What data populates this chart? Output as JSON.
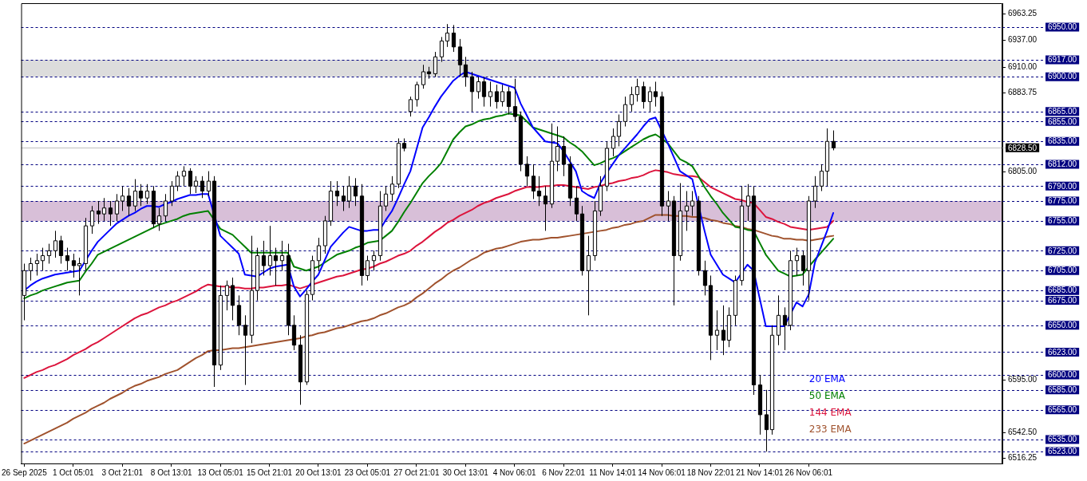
{
  "chart_data": {
    "type": "candlestick",
    "categories": [
      "26 Sep 2025",
      null,
      null,
      null,
      null,
      null,
      null,
      null,
      "1 Oct 05:01",
      null,
      null,
      null,
      null,
      null,
      null,
      null,
      "3 Oct 21:01",
      null,
      null,
      null,
      null,
      null,
      null,
      null,
      "8 Oct 13:01",
      null,
      null,
      null,
      null,
      null,
      null,
      null,
      "13 Oct 05:01",
      null,
      null,
      null,
      null,
      null,
      null,
      null,
      "15 Oct 21:01",
      null,
      null,
      null,
      null,
      null,
      null,
      null,
      "20 Oct 13:01",
      null,
      null,
      null,
      null,
      null,
      null,
      null,
      "23 Oct 05:01",
      null,
      null,
      null,
      null,
      null,
      null,
      null,
      "27 Oct 21:01",
      null,
      null,
      null,
      null,
      null,
      null,
      null,
      "30 Oct 13:01",
      null,
      null,
      null,
      null,
      null,
      null,
      null,
      "4 Nov 06:01",
      null,
      null,
      null,
      null,
      null,
      null,
      null,
      "6 Nov 22:01",
      null,
      null,
      null,
      null,
      null,
      null,
      null,
      "11 Nov 14:01",
      null,
      null,
      null,
      null,
      null,
      null,
      null,
      "14 Nov 06:01",
      null,
      null,
      null,
      null,
      null,
      null,
      null,
      "18 Nov 22:01",
      null,
      null,
      null,
      null,
      null,
      null,
      null,
      "21 Nov 14:01",
      null,
      null,
      null,
      null,
      null,
      null,
      null,
      "26 Nov 06:01",
      null,
      null,
      null,
      null
    ],
    "ohlc": [
      [
        6680,
        6712,
        6655,
        6705
      ],
      [
        6705,
        6718,
        6695,
        6712
      ],
      [
        6712,
        6722,
        6700,
        6715
      ],
      [
        6715,
        6728,
        6705,
        6720
      ],
      [
        6720,
        6732,
        6712,
        6725
      ],
      [
        6725,
        6745,
        6718,
        6735
      ],
      [
        6735,
        6740,
        6712,
        6720
      ],
      [
        6720,
        6728,
        6705,
        6715
      ],
      [
        6715,
        6722,
        6698,
        6710
      ],
      [
        6710,
        6718,
        6680,
        6712
      ],
      [
        6712,
        6758,
        6705,
        6750
      ],
      [
        6750,
        6770,
        6742,
        6765
      ],
      [
        6765,
        6775,
        6752,
        6762
      ],
      [
        6762,
        6778,
        6755,
        6768
      ],
      [
        6768,
        6775,
        6750,
        6762
      ],
      [
        6762,
        6782,
        6755,
        6775
      ],
      [
        6775,
        6790,
        6765,
        6780
      ],
      [
        6780,
        6788,
        6760,
        6770
      ],
      [
        6770,
        6797,
        6765,
        6785
      ],
      [
        6785,
        6792,
        6770,
        6778
      ],
      [
        6778,
        6792,
        6772,
        6785
      ],
      [
        6785,
        6790,
        6748,
        6752
      ],
      [
        6752,
        6768,
        6745,
        6760
      ],
      [
        6760,
        6782,
        6755,
        6775
      ],
      [
        6775,
        6795,
        6770,
        6790
      ],
      [
        6790,
        6805,
        6785,
        6800
      ],
      [
        6800,
        6810,
        6790,
        6805
      ],
      [
        6805,
        6808,
        6782,
        6790
      ],
      [
        6790,
        6800,
        6783,
        6795
      ],
      [
        6795,
        6800,
        6778,
        6785
      ],
      [
        6785,
        6805,
        6780,
        6795
      ],
      [
        6795,
        6800,
        6588,
        6610
      ],
      [
        6610,
        6690,
        6605,
        6680
      ],
      [
        6680,
        6695,
        6665,
        6690
      ],
      [
        6690,
        6698,
        6655,
        6670
      ],
      [
        6670,
        6680,
        6640,
        6650
      ],
      [
        6650,
        6660,
        6590,
        6640
      ],
      [
        6640,
        6740,
        6632,
        6685
      ],
      [
        6685,
        6728,
        6675,
        6720
      ],
      [
        6720,
        6735,
        6700,
        6710
      ],
      [
        6710,
        6750,
        6700,
        6720
      ],
      [
        6720,
        6728,
        6690,
        6715
      ],
      [
        6715,
        6735,
        6705,
        6720
      ],
      [
        6720,
        6732,
        6640,
        6650
      ],
      [
        6650,
        6660,
        6625,
        6630
      ],
      [
        6630,
        6640,
        6570,
        6593
      ],
      [
        6593,
        6685,
        6590,
        6681
      ],
      [
        6681,
        6720,
        6675,
        6715
      ],
      [
        6715,
        6738,
        6705,
        6730
      ],
      [
        6730,
        6760,
        6722,
        6755
      ],
      [
        6755,
        6795,
        6750,
        6785
      ],
      [
        6785,
        6795,
        6770,
        6780
      ],
      [
        6780,
        6790,
        6765,
        6775
      ],
      [
        6775,
        6800,
        6768,
        6790
      ],
      [
        6790,
        6798,
        6770,
        6780
      ],
      [
        6780,
        6792,
        6690,
        6700
      ],
      [
        6700,
        6720,
        6695,
        6715
      ],
      [
        6715,
        6725,
        6705,
        6720
      ],
      [
        6720,
        6785,
        6715,
        6770
      ],
      [
        6770,
        6790,
        6765,
        6782
      ],
      [
        6782,
        6800,
        6775,
        6792
      ],
      [
        6792,
        6838,
        6788,
        6833
      ],
      [
        6833,
        6838,
        6825,
        6828
      ],
      [
        6865,
        6880,
        6860,
        6877
      ],
      [
        6877,
        6895,
        6870,
        6892
      ],
      [
        6892,
        6912,
        6888,
        6905
      ],
      [
        6905,
        6910,
        6898,
        6903
      ],
      [
        6903,
        6925,
        6900,
        6920
      ],
      [
        6920,
        6940,
        6915,
        6936
      ],
      [
        6936,
        6953,
        6930,
        6944
      ],
      [
        6944,
        6952,
        6925,
        6930
      ],
      [
        6930,
        6938,
        6900,
        6912
      ],
      [
        6912,
        6920,
        6890,
        6900
      ],
      [
        6900,
        6905,
        6865,
        6885
      ],
      [
        6885,
        6900,
        6878,
        6895
      ],
      [
        6895,
        6900,
        6870,
        6880
      ],
      [
        6880,
        6895,
        6870,
        6885
      ],
      [
        6885,
        6892,
        6868,
        6875
      ],
      [
        6875,
        6892,
        6870,
        6885
      ],
      [
        6885,
        6890,
        6862,
        6870
      ],
      [
        6870,
        6898,
        6855,
        6860
      ],
      [
        6860,
        6865,
        6805,
        6812
      ],
      [
        6812,
        6820,
        6790,
        6800
      ],
      [
        6800,
        6812,
        6777,
        6785
      ],
      [
        6785,
        6800,
        6770,
        6780
      ],
      [
        6780,
        6790,
        6745,
        6772
      ],
      [
        6772,
        6853,
        6768,
        6815
      ],
      [
        6815,
        6850,
        6805,
        6830
      ],
      [
        6830,
        6840,
        6800,
        6812
      ],
      [
        6812,
        6820,
        6770,
        6778
      ],
      [
        6778,
        6790,
        6755,
        6762
      ],
      [
        6762,
        6770,
        6700,
        6705
      ],
      [
        6705,
        6740,
        6660,
        6720
      ],
      [
        6720,
        6775,
        6715,
        6765
      ],
      [
        6765,
        6800,
        6760,
        6790
      ],
      [
        6790,
        6835,
        6785,
        6828
      ],
      [
        6828,
        6848,
        6820,
        6840
      ],
      [
        6840,
        6862,
        6830,
        6855
      ],
      [
        6855,
        6880,
        6850,
        6872
      ],
      [
        6872,
        6890,
        6865,
        6882
      ],
      [
        6882,
        6898,
        6875,
        6890
      ],
      [
        6890,
        6895,
        6868,
        6875
      ],
      [
        6875,
        6890,
        6865,
        6885
      ],
      [
        6885,
        6895,
        6870,
        6880
      ],
      [
        6880,
        6885,
        6760,
        6770
      ],
      [
        6770,
        6785,
        6755,
        6775
      ],
      [
        6775,
        6780,
        6670,
        6720
      ],
      [
        6720,
        6793,
        6715,
        6765
      ],
      [
        6765,
        6785,
        6745,
        6770
      ],
      [
        6770,
        6785,
        6760,
        6775
      ],
      [
        6775,
        6780,
        6700,
        6705
      ],
      [
        6705,
        6715,
        6680,
        6690
      ],
      [
        6690,
        6700,
        6615,
        6640
      ],
      [
        6640,
        6665,
        6625,
        6645
      ],
      [
        6645,
        6670,
        6620,
        6635
      ],
      [
        6635,
        6668,
        6628,
        6660
      ],
      [
        6660,
        6700,
        6650,
        6695
      ],
      [
        6695,
        6790,
        6690,
        6770
      ],
      [
        6770,
        6792,
        6755,
        6780
      ],
      [
        6780,
        6790,
        6580,
        6590
      ],
      [
        6590,
        6600,
        6540,
        6560
      ],
      [
        6560,
        6585,
        6523,
        6545
      ],
      [
        6545,
        6650,
        6540,
        6640
      ],
      [
        6640,
        6680,
        6630,
        6660
      ],
      [
        6660,
        6668,
        6625,
        6650
      ],
      [
        6650,
        6725,
        6645,
        6715
      ],
      [
        6715,
        6728,
        6700,
        6720
      ],
      [
        6720,
        6725,
        6690,
        6705
      ],
      [
        6705,
        6780,
        6675,
        6775
      ],
      [
        6775,
        6800,
        6768,
        6790
      ],
      [
        6790,
        6812,
        6785,
        6805
      ],
      [
        6805,
        6848,
        6790,
        6835
      ],
      [
        6835,
        6846,
        6826,
        6828.5
      ]
    ],
    "series": [
      {
        "name": "20 EMA",
        "type": "line",
        "color": "#0000ff",
        "values": [
          6685,
          6690,
          6694,
          6697,
          6699,
          6701,
          6702,
          6703,
          6704,
          6705,
          6715,
          6725,
          6734,
          6740,
          6746,
          6752,
          6756,
          6760,
          6763,
          6767,
          6770,
          6770,
          6769,
          6772,
          6774,
          6777,
          6779,
          6781,
          6781,
          6782,
          6782,
          null,
          6740,
          6734,
          6728,
          6722,
          6701,
          6700,
          6699,
          6703,
          6707,
          6709,
          6710,
          6711,
          6689,
          6679,
          6686,
          6694,
          6701,
          6715,
          6729,
          6736,
          6743,
          6749,
          6747,
          6745,
          6745,
          6746,
          6746,
          6756,
          6765,
          6778,
          6792,
          6805,
          6827,
          6849,
          6859,
          6870,
          6880,
          6888,
          6896,
          6901,
          6905,
          6903,
          6901,
          6899,
          6897,
          6895,
          6893,
          6891,
          6889,
          6873,
          6861,
          6849,
          6842,
          6835,
          6834,
          6833,
          6825,
          6815,
          6805,
          6785,
          6781,
          6778,
          6793,
          6803,
          6812,
          6821,
          6828,
          6835,
          6842,
          6850,
          6857,
          6859,
          6846,
          6833,
          6819,
          6805,
          6801,
          6797,
          null,
          6745,
          6721,
          6711,
          6701,
          6697,
          6693,
          6702,
          6711,
          6705,
          6677,
          6649,
          6649,
          6649,
          6649,
          6661,
          6673,
          6669,
          6681,
          6713,
          6729,
          6745,
          6763
        ]
      },
      {
        "name": "50 EMA",
        "type": "line",
        "color": "#008000",
        "values": [
          6677,
          6680,
          6682,
          6685,
          6687,
          6689,
          6691,
          6693,
          6694,
          6695,
          6704,
          6712,
          6721,
          6724,
          6727,
          6730,
          6733,
          6736,
          6739,
          6742,
          6745,
          6748,
          6751,
          6753,
          6755,
          6757,
          6760,
          6762,
          6763,
          6764,
          6765,
          6756,
          6747,
          6744,
          6741,
          6735,
          6729,
          6723,
          6723,
          6723,
          6723,
          6723,
          6723,
          6723,
          6709,
          6707,
          6705,
          6707,
          6709,
          6713,
          6717,
          6721,
          6723,
          6725,
          6728,
          6730,
          6733,
          6734,
          6735,
          6740,
          6745,
          6754,
          6764,
          6773,
          6783,
          6793,
          6800,
          6806,
          6813,
          6825,
          6837,
          6844,
          6850,
          6852,
          6855,
          6857,
          6858,
          6860,
          6861,
          6863,
          6862,
          6861,
          6855,
          6849,
          6847,
          6845,
          6843,
          6841,
          6839,
          6834,
          6830,
          6825,
          6818,
          6811,
          6813,
          6816,
          6818,
          6821,
          6825,
          6829,
          6833,
          6837,
          6840,
          6842,
          6838,
          6833,
          6825,
          6817,
          6814,
          6810,
          6800,
          6789,
          6780,
          6772,
          6763,
          6756,
          6749,
          6748,
          6746,
          6745,
          6733,
          6721,
          6713,
          6705,
          6702,
          6699,
          6700,
          6701,
          6709,
          6716,
          6723,
          6730,
          6737
        ]
      },
      {
        "name": "144 EMA",
        "type": "line",
        "color": "#dc143c",
        "values": [
          6597,
          6600,
          6603,
          6605,
          6608,
          6610,
          6613,
          6616,
          6620,
          6623,
          6626,
          6630,
          6633,
          6637,
          6641,
          6645,
          6649,
          6653,
          6657,
          6660,
          6662,
          6665,
          6668,
          6670,
          6673,
          6675,
          6678,
          6681,
          6684,
          6688,
          6691,
          6690,
          6689,
          6689,
          6688,
          6688,
          6687,
          6687,
          6688,
          6688,
          6689,
          6690,
          6690,
          6691,
          6689,
          6687,
          6689,
          6691,
          6693,
          6695,
          6697,
          6699,
          6700,
          6702,
          6704,
          6706,
          6707,
          6709,
          6712,
          6714,
          6717,
          6720,
          6722,
          6725,
          6730,
          6734,
          6739,
          6744,
          6748,
          6753,
          6756,
          6760,
          6763,
          6766,
          6770,
          6773,
          6775,
          6778,
          6780,
          6782,
          6785,
          6787,
          6789,
          6789,
          6789,
          6790,
          6790,
          6791,
          6791,
          6790,
          6789,
          6788,
          6787,
          6789,
          6790,
          6792,
          6793,
          6795,
          6796,
          6798,
          6799,
          6801,
          6804,
          6806,
          6805,
          6804,
          6802,
          6801,
          6800,
          6800,
          6799,
          6794,
          6789,
          6786,
          6783,
          6780,
          6777,
          6776,
          6774,
          6773,
          6766,
          6759,
          6757,
          6754,
          6752,
          6749,
          6748,
          6747,
          6746,
          6747,
          6748,
          6749,
          6755
        ]
      },
      {
        "name": "233 EMA",
        "type": "line",
        "color": "#a0522d",
        "values": [
          6531,
          6534,
          6537,
          6540,
          6543,
          6546,
          6549,
          6552,
          6556,
          6559,
          6562,
          6566,
          6569,
          6572,
          6576,
          6579,
          6582,
          6586,
          6589,
          6591,
          6594,
          6596,
          6598,
          6601,
          6603,
          6605,
          6609,
          6613,
          6617,
          6620,
          6624,
          6625,
          6625,
          6626,
          6627,
          6627,
          6628,
          6629,
          6630,
          6631,
          6632,
          6633,
          6634,
          6635,
          6636,
          6637,
          6639,
          6640,
          6642,
          6643,
          6645,
          6647,
          6648,
          6650,
          6652,
          6654,
          6655,
          6657,
          6660,
          6662,
          6665,
          6668,
          6670,
          6673,
          6678,
          6682,
          6687,
          6692,
          6696,
          6701,
          6705,
          6708,
          6712,
          6716,
          6719,
          6723,
          6725,
          6727,
          6728,
          6730,
          6732,
          6734,
          6735,
          6736,
          6736,
          6737,
          6738,
          6738,
          6739,
          6740,
          6741,
          6742,
          6743,
          6744,
          6745,
          6746,
          6748,
          6749,
          6751,
          6752,
          6754,
          6755,
          6758,
          6761,
          6761,
          6761,
          6760,
          6760,
          6760,
          6759,
          6759,
          6758,
          6756,
          6755,
          6753,
          6752,
          6750,
          6749,
          6747,
          6746,
          6744,
          6742,
          6740,
          6739,
          6737,
          6737,
          6736,
          6736,
          6735,
          6736,
          6737,
          6739,
          6740
        ]
      }
    ],
    "ylim": [
      6511,
      6974
    ],
    "yticks": [
      {
        "value": 6963.25,
        "label": "6963.25"
      },
      {
        "value": 6937,
        "label": "6937.00"
      },
      {
        "value": 6910,
        "label": "6910.00"
      },
      {
        "value": 6883.75,
        "label": "6883.75"
      },
      {
        "value": 6805,
        "label": "6805.00"
      },
      {
        "value": 6595,
        "label": "6595.00"
      },
      {
        "value": 6542.5,
        "label": "6542.50"
      },
      {
        "value": 6516.25,
        "label": "6516.25"
      }
    ],
    "ref_lines": [
      {
        "axis": "y",
        "value": 6950,
        "label": "6950.00",
        "color": "#000080",
        "line_style": "dashed"
      },
      {
        "axis": "y",
        "value": 6917,
        "label": "6917.00",
        "color": "#000080",
        "line_style": "dashed"
      },
      {
        "axis": "y",
        "value": 6900,
        "label": "6900.00",
        "color": "#000080",
        "line_style": "dashed"
      },
      {
        "axis": "y",
        "value": 6865,
        "label": "6865.00",
        "color": "#000080",
        "line_style": "dashed"
      },
      {
        "axis": "y",
        "value": 6855,
        "label": "6855.00",
        "color": "#000080",
        "line_style": "dashed"
      },
      {
        "axis": "y",
        "value": 6835,
        "label": "6835.00",
        "color": "#000080",
        "line_style": "dashed"
      },
      {
        "axis": "y",
        "value": 6828.5,
        "label": "6828.50",
        "color": "#c0c0c0",
        "line_style": "solid"
      },
      {
        "axis": "y",
        "value": 6812,
        "label": "6812.00",
        "color": "#000080",
        "line_style": "dashed"
      },
      {
        "axis": "y",
        "value": 6790,
        "label": "6790.00",
        "color": "#000080",
        "line_style": "dashed"
      },
      {
        "axis": "y",
        "value": 6775,
        "label": "6775.00",
        "color": "#000080",
        "line_style": "dashed"
      },
      {
        "axis": "y",
        "value": 6755,
        "label": "6755.00",
        "color": "#000080",
        "line_style": "dashed"
      },
      {
        "axis": "y",
        "value": 6725,
        "label": "6725.00",
        "color": "#000080",
        "line_style": "dashed"
      },
      {
        "axis": "y",
        "value": 6705,
        "label": "6705.00",
        "color": "#000080",
        "line_style": "dashed"
      },
      {
        "axis": "y",
        "value": 6685,
        "label": "6685.00",
        "color": "#000080",
        "line_style": "dashed"
      },
      {
        "axis": "y",
        "value": 6675,
        "label": "6675.00",
        "color": "#000080",
        "line_style": "dashed"
      },
      {
        "axis": "y",
        "value": 6650,
        "label": "6650.00",
        "color": "#000080",
        "line_style": "dashed"
      },
      {
        "axis": "y",
        "value": 6623,
        "label": "6623.00",
        "color": "#000080",
        "line_style": "dashed"
      },
      {
        "axis": "y",
        "value": 6600,
        "label": "6600.00",
        "color": "#000080",
        "line_style": "dashed"
      },
      {
        "axis": "y",
        "value": 6585,
        "label": "6585.00",
        "color": "#000080",
        "line_style": "dashed"
      },
      {
        "axis": "y",
        "value": 6565,
        "label": "6565.00",
        "color": "#000080",
        "line_style": "dashed"
      },
      {
        "axis": "y",
        "value": 6535,
        "label": "6535.00",
        "color": "#000080",
        "line_style": "dashed"
      },
      {
        "axis": "y",
        "value": 6523,
        "label": "6523.00",
        "color": "#000080",
        "line_style": "dashed"
      }
    ],
    "bands": [
      {
        "axis": "y",
        "from": 6900,
        "to": 6917,
        "color": "#dcdcdc"
      },
      {
        "axis": "y",
        "from": 6755,
        "to": 6775,
        "color": "#d8bfd8"
      }
    ],
    "grid": false,
    "legend": "bottom right"
  }
}
